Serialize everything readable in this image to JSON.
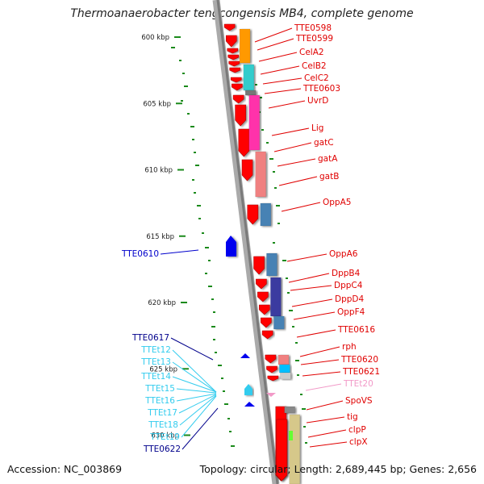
{
  "title": "Thermoanaerobacter tengcongensis MB4, complete genome",
  "footer": {
    "accession": "Accession: NC_003869",
    "summary": "Topology: circular; Length: 2,689,445 bp; Genes: 2,656"
  },
  "ruler": [
    {
      "label": "600 kbp",
      "kb": 600
    },
    {
      "label": "605 kbp",
      "kb": 605
    },
    {
      "label": "610 kbp",
      "kb": 610
    },
    {
      "label": "615 kbp",
      "kb": 615
    },
    {
      "label": "620 kbp",
      "kb": 620
    },
    {
      "label": "625 kbp",
      "kb": 625
    },
    {
      "label": "630 kbp",
      "kb": 630
    }
  ],
  "right_labels": [
    {
      "text": "TTE0598",
      "color": "#e00000"
    },
    {
      "text": "TTE0599",
      "color": "#e00000"
    },
    {
      "text": "CelA2",
      "color": "#e00000"
    },
    {
      "text": "CelB2",
      "color": "#e00000"
    },
    {
      "text": "CelC2",
      "color": "#e00000"
    },
    {
      "text": "TTE0603",
      "color": "#e00000"
    },
    {
      "text": "UvrD",
      "color": "#e00000"
    },
    {
      "text": "Lig",
      "color": "#e00000"
    },
    {
      "text": "gatC",
      "color": "#e00000"
    },
    {
      "text": "gatA",
      "color": "#e00000"
    },
    {
      "text": "gatB",
      "color": "#e00000"
    },
    {
      "text": "OppA5",
      "color": "#e00000"
    },
    {
      "text": "OppA6",
      "color": "#e00000"
    },
    {
      "text": "DppB4",
      "color": "#e00000"
    },
    {
      "text": "DppC4",
      "color": "#e00000"
    },
    {
      "text": "DppD4",
      "color": "#e00000"
    },
    {
      "text": "OppF4",
      "color": "#e00000"
    },
    {
      "text": "TTE0616",
      "color": "#e00000"
    },
    {
      "text": "rph",
      "color": "#e00000"
    },
    {
      "text": "TTE0620",
      "color": "#e00000"
    },
    {
      "text": "TTE0621",
      "color": "#e00000"
    },
    {
      "text": "TTEt20",
      "color": "#f29ac8"
    },
    {
      "text": "SpoVS",
      "color": "#e00000"
    },
    {
      "text": "tig",
      "color": "#e00000"
    },
    {
      "text": "clpP",
      "color": "#e00000"
    },
    {
      "text": "clpX",
      "color": "#e00000"
    }
  ],
  "left_labels": [
    {
      "text": "TTE0610",
      "color": "#0000cc"
    },
    {
      "text": "TTE0617",
      "color": "#00008b"
    },
    {
      "text": "TTEt12",
      "color": "#33ccee"
    },
    {
      "text": "TTEt13",
      "color": "#33ccee"
    },
    {
      "text": "TTEt14",
      "color": "#33ccee"
    },
    {
      "text": "TTEt15",
      "color": "#33ccee"
    },
    {
      "text": "TTEt16",
      "color": "#33ccee"
    },
    {
      "text": "TTEt17",
      "color": "#33ccee"
    },
    {
      "text": "TTEt18",
      "color": "#33ccee"
    },
    {
      "text": "TTEt19",
      "color": "#33ccee"
    },
    {
      "text": "TTE0622",
      "color": "#00008b"
    }
  ],
  "colors": {
    "forward_gene": "#ff0000",
    "reverse_gene": "#0000ee",
    "trna": "#33ccee",
    "backbone": "#8c8c8c",
    "gc_skew": "#1b8a1b"
  }
}
